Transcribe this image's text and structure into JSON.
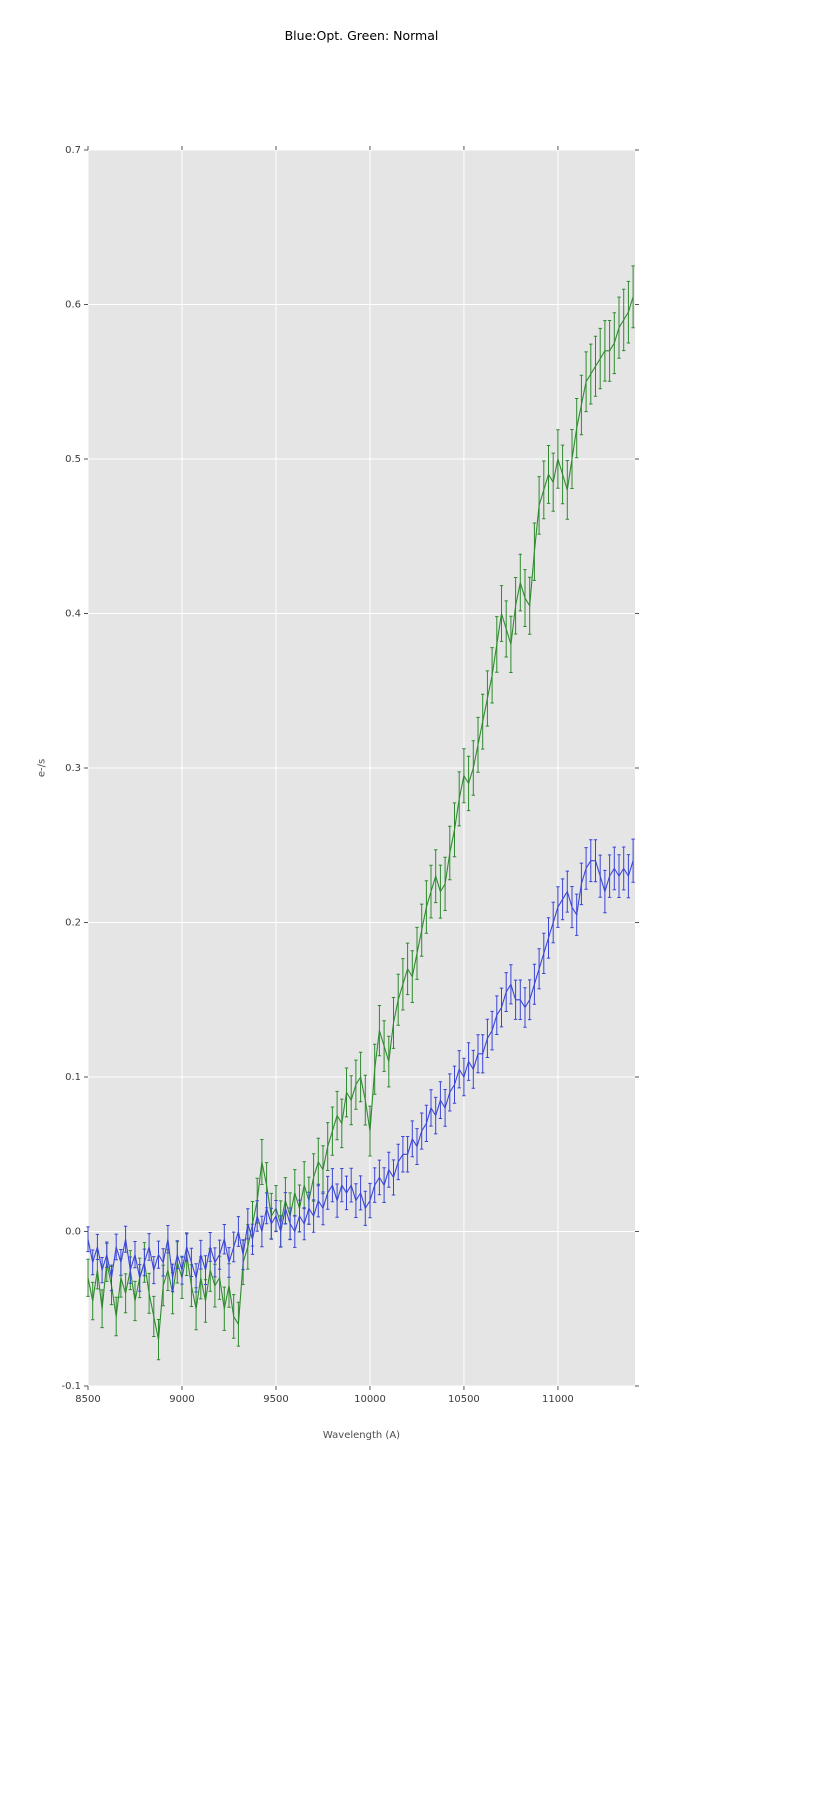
{
  "figure": {
    "title": "Blue:Opt. Green: Normal"
  },
  "chart_data": {
    "type": "line",
    "title": "Blue:Opt. Green: Normal",
    "xlabel": "Wavelength (A)",
    "ylabel": "e-/s",
    "xlim": [
      8500,
      11410
    ],
    "ylim": [
      -0.1,
      0.7
    ],
    "xticks": [
      8500,
      9000,
      9500,
      10000,
      10500,
      11000
    ],
    "yticks": [
      -0.1,
      0.0,
      0.1,
      0.2,
      0.3,
      0.4,
      0.5,
      0.6,
      0.7
    ],
    "grid": true,
    "background": "#e5e5e5",
    "grid_color": "#ffffff",
    "tick_color": "#555555",
    "legend_position": "none",
    "x_start": 8500,
    "x_step": 25,
    "series": [
      {
        "name": "Normal",
        "color": "#2e8b2e",
        "style": "errorbar-line",
        "yerr_min": 0.012,
        "yerr_max": 0.02,
        "values": [
          -0.03,
          -0.045,
          -0.025,
          -0.05,
          -0.02,
          -0.035,
          -0.055,
          -0.03,
          -0.04,
          -0.025,
          -0.045,
          -0.03,
          -0.02,
          -0.04,
          -0.055,
          -0.07,
          -0.035,
          -0.025,
          -0.04,
          -0.02,
          -0.03,
          -0.015,
          -0.035,
          -0.05,
          -0.03,
          -0.045,
          -0.025,
          -0.035,
          -0.03,
          -0.05,
          -0.035,
          -0.055,
          -0.06,
          -0.02,
          -0.01,
          0.005,
          0.02,
          0.045,
          0.03,
          0.01,
          0.015,
          0.005,
          0.02,
          0.01,
          0.025,
          0.015,
          0.03,
          0.02,
          0.035,
          0.045,
          0.04,
          0.055,
          0.065,
          0.075,
          0.07,
          0.09,
          0.085,
          0.095,
          0.1,
          0.085,
          0.065,
          0.105,
          0.13,
          0.12,
          0.11,
          0.135,
          0.15,
          0.16,
          0.17,
          0.165,
          0.18,
          0.195,
          0.21,
          0.22,
          0.23,
          0.22,
          0.225,
          0.245,
          0.26,
          0.28,
          0.295,
          0.29,
          0.3,
          0.315,
          0.33,
          0.345,
          0.36,
          0.38,
          0.4,
          0.39,
          0.38,
          0.405,
          0.42,
          0.41,
          0.405,
          0.44,
          0.47,
          0.48,
          0.49,
          0.485,
          0.5,
          0.49,
          0.48,
          0.5,
          0.52,
          0.535,
          0.55,
          0.555,
          0.56,
          0.565,
          0.57,
          0.57,
          0.575,
          0.585,
          0.59,
          0.595,
          0.605
        ]
      },
      {
        "name": "Opt",
        "color": "#3a45d8",
        "style": "errorbar-line",
        "yerr_min": 0.008,
        "yerr_max": 0.014,
        "values": [
          -0.005,
          -0.02,
          -0.01,
          -0.025,
          -0.015,
          -0.03,
          -0.01,
          -0.02,
          -0.005,
          -0.025,
          -0.015,
          -0.03,
          -0.02,
          -0.01,
          -0.025,
          -0.015,
          -0.02,
          -0.005,
          -0.03,
          -0.015,
          -0.025,
          -0.01,
          -0.02,
          -0.03,
          -0.015,
          -0.025,
          -0.01,
          -0.02,
          -0.015,
          -0.005,
          -0.02,
          -0.01,
          0.0,
          -0.015,
          0.005,
          -0.005,
          0.01,
          0.0,
          0.015,
          0.005,
          0.01,
          0.0,
          0.015,
          0.005,
          0.0,
          0.01,
          0.005,
          0.015,
          0.01,
          0.02,
          0.015,
          0.025,
          0.03,
          0.02,
          0.03,
          0.025,
          0.03,
          0.02,
          0.025,
          0.015,
          0.02,
          0.03,
          0.035,
          0.03,
          0.04,
          0.035,
          0.045,
          0.05,
          0.05,
          0.06,
          0.055,
          0.065,
          0.07,
          0.08,
          0.075,
          0.085,
          0.08,
          0.09,
          0.095,
          0.105,
          0.1,
          0.11,
          0.105,
          0.115,
          0.115,
          0.125,
          0.13,
          0.14,
          0.145,
          0.155,
          0.16,
          0.15,
          0.15,
          0.145,
          0.15,
          0.16,
          0.17,
          0.18,
          0.19,
          0.2,
          0.21,
          0.215,
          0.22,
          0.21,
          0.205,
          0.225,
          0.235,
          0.24,
          0.24,
          0.23,
          0.22,
          0.23,
          0.235,
          0.23,
          0.235,
          0.23,
          0.24
        ]
      }
    ]
  }
}
